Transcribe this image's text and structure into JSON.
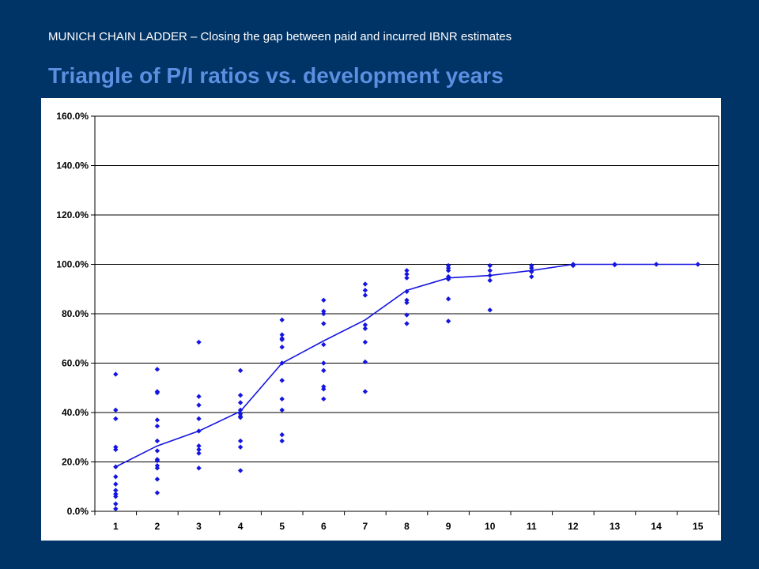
{
  "header": {
    "supertitle": "MUNICH CHAIN LADDER – Closing the gap between paid and incurred IBNR estimates",
    "title": "Triangle of P/I ratios vs. development years"
  },
  "colors": {
    "background": "#003366",
    "title": "#5b8fe0",
    "series": "#1515e0",
    "grid": "#000000",
    "plot_background": "#ffffff"
  },
  "chart_data": {
    "type": "scatter",
    "title": "",
    "xlabel": "",
    "ylabel": "",
    "x_categories": [
      "1",
      "2",
      "3",
      "4",
      "5",
      "6",
      "7",
      "8",
      "9",
      "10",
      "11",
      "12",
      "13",
      "14",
      "15"
    ],
    "ylim": [
      0,
      160
    ],
    "y_ticks": [
      0,
      20,
      40,
      60,
      80,
      100,
      120,
      140,
      160
    ],
    "y_tick_labels": [
      "0.0%",
      "20.0%",
      "40.0%",
      "60.0%",
      "80.0%",
      "100.0%",
      "120.0%",
      "140.0%",
      "160.0%"
    ],
    "grid": "horizontal",
    "legend": "none",
    "series": [
      {
        "kind": "scatter",
        "points": [
          [
            1,
            55.5
          ],
          [
            1,
            41
          ],
          [
            1,
            37.5
          ],
          [
            1,
            26
          ],
          [
            1,
            25
          ],
          [
            1,
            18
          ],
          [
            1,
            14
          ],
          [
            1,
            11
          ],
          [
            1,
            8.5
          ],
          [
            1,
            7
          ],
          [
            1,
            6
          ],
          [
            1,
            3
          ],
          [
            1,
            1
          ],
          [
            2,
            57.5
          ],
          [
            2,
            48.5
          ],
          [
            2,
            48
          ],
          [
            2,
            37
          ],
          [
            2,
            34.5
          ],
          [
            2,
            28.5
          ],
          [
            2,
            24.5
          ],
          [
            2,
            21
          ],
          [
            2,
            20.5
          ],
          [
            2,
            18.5
          ],
          [
            2,
            17.5
          ],
          [
            2,
            13
          ],
          [
            2,
            7.5
          ],
          [
            3,
            68.5
          ],
          [
            3,
            46.5
          ],
          [
            3,
            43
          ],
          [
            3,
            37.5
          ],
          [
            3,
            32.5
          ],
          [
            3,
            26.5
          ],
          [
            3,
            25
          ],
          [
            3,
            23.5
          ],
          [
            3,
            17.5
          ],
          [
            4,
            57
          ],
          [
            4,
            47
          ],
          [
            4,
            44
          ],
          [
            4,
            41
          ],
          [
            4,
            39.5
          ],
          [
            4,
            38.5
          ],
          [
            4,
            38
          ],
          [
            4,
            28.5
          ],
          [
            4,
            26
          ],
          [
            4,
            16.5
          ],
          [
            5,
            77.5
          ],
          [
            5,
            71.5
          ],
          [
            5,
            70
          ],
          [
            5,
            69.5
          ],
          [
            5,
            66.5
          ],
          [
            5,
            60
          ],
          [
            5,
            53
          ],
          [
            5,
            45.5
          ],
          [
            5,
            41
          ],
          [
            5,
            31
          ],
          [
            5,
            28.5
          ],
          [
            6,
            85.5
          ],
          [
            6,
            81
          ],
          [
            6,
            80
          ],
          [
            6,
            76
          ],
          [
            6,
            67.5
          ],
          [
            6,
            60
          ],
          [
            6,
            57
          ],
          [
            6,
            50.5
          ],
          [
            6,
            49.5
          ],
          [
            6,
            45.5
          ],
          [
            7,
            92
          ],
          [
            7,
            89.5
          ],
          [
            7,
            87.5
          ],
          [
            7,
            75.5
          ],
          [
            7,
            74
          ],
          [
            7,
            68.5
          ],
          [
            7,
            60.5
          ],
          [
            7,
            48.5
          ],
          [
            8,
            97.5
          ],
          [
            8,
            96
          ],
          [
            8,
            94.5
          ],
          [
            8,
            89
          ],
          [
            8,
            85.5
          ],
          [
            8,
            84.5
          ],
          [
            8,
            79.5
          ],
          [
            8,
            76
          ],
          [
            9,
            99.5
          ],
          [
            9,
            98.5
          ],
          [
            9,
            97.5
          ],
          [
            9,
            95
          ],
          [
            9,
            94
          ],
          [
            9,
            86
          ],
          [
            9,
            77
          ],
          [
            10,
            99.5
          ],
          [
            10,
            97.5
          ],
          [
            10,
            95.5
          ],
          [
            10,
            93.5
          ],
          [
            10,
            81.5
          ],
          [
            11,
            99.5
          ],
          [
            11,
            98.5
          ],
          [
            11,
            97
          ],
          [
            11,
            95
          ],
          [
            12,
            100
          ],
          [
            12,
            99.5
          ],
          [
            13,
            100
          ],
          [
            13,
            99.8
          ],
          [
            14,
            100
          ],
          [
            15,
            100
          ]
        ]
      },
      {
        "kind": "line",
        "x": [
          1,
          2,
          3,
          4,
          5,
          6,
          7,
          8,
          9,
          10,
          11,
          12,
          13,
          14,
          15
        ],
        "values": [
          18,
          26.5,
          32.5,
          40.5,
          60,
          69,
          77.5,
          89.5,
          94.5,
          95.5,
          97.5,
          100,
          100,
          100,
          100
        ]
      }
    ]
  }
}
